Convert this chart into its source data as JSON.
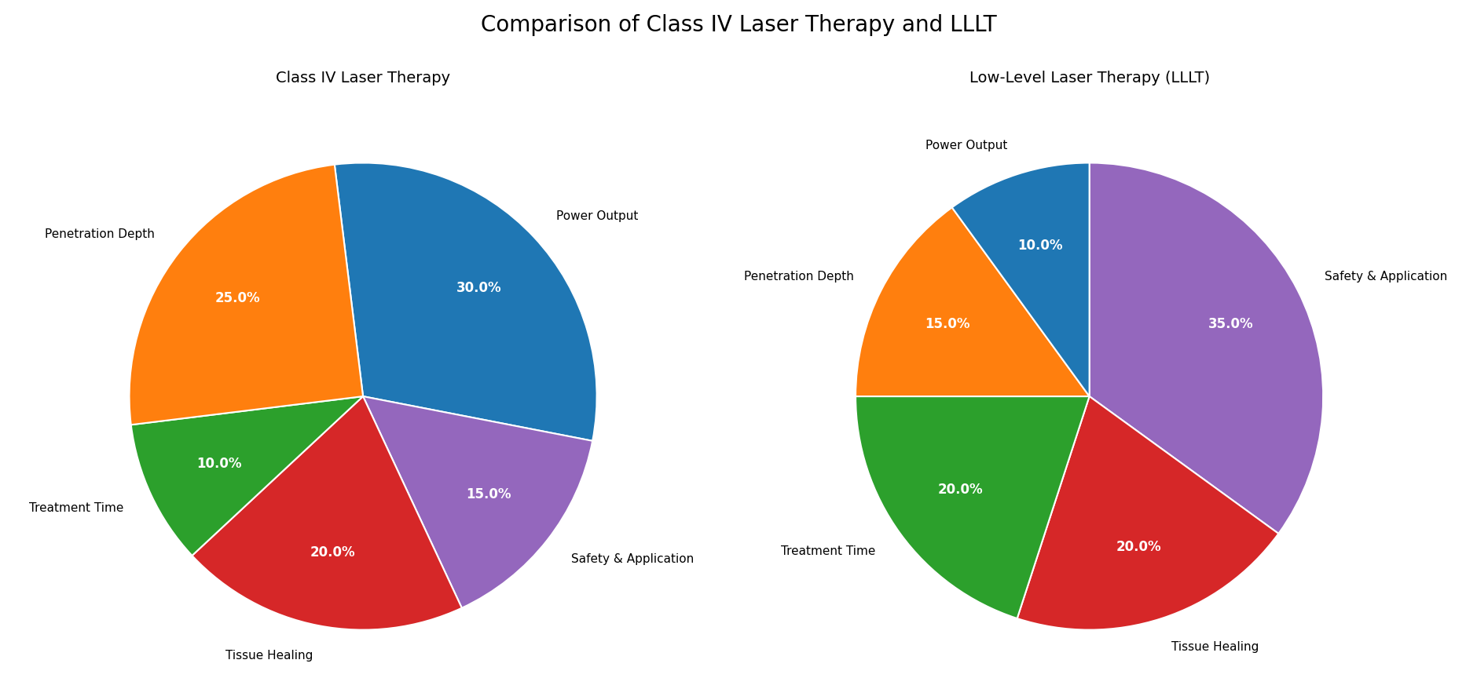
{
  "title": "Comparison of Class IV Laser Therapy and LLLT",
  "title_fontsize": 20,
  "left_title": "Class IV Laser Therapy",
  "right_title": "Low-Level Laser Therapy (LLLT)",
  "subtitle_fontsize": 14,
  "left_pie": {
    "labels": [
      "Power Output",
      "Safety & Application",
      "Tissue Healing",
      "Treatment Time",
      "Penetration Depth"
    ],
    "values": [
      30,
      15,
      20,
      10,
      25
    ],
    "colors": [
      "#1f77b4",
      "#9467bd",
      "#d62728",
      "#2ca02c",
      "#ff7f0e"
    ],
    "startangle": 97
  },
  "right_pie": {
    "labels": [
      "Safety & Application",
      "Tissue Healing",
      "Treatment Time",
      "Penetration Depth",
      "Power Output"
    ],
    "values": [
      35,
      20,
      20,
      15,
      10
    ],
    "colors": [
      "#9467bd",
      "#d62728",
      "#2ca02c",
      "#ff7f0e",
      "#1f77b4"
    ],
    "startangle": 90
  },
  "background_color": "#ffffff",
  "label_fontsize": 11,
  "pct_fontsize": 12,
  "figsize": [
    18.8,
    8.92
  ]
}
